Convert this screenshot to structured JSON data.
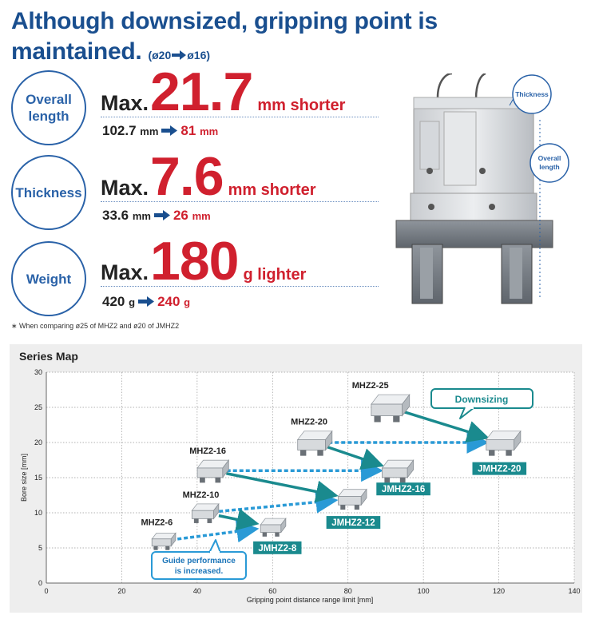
{
  "headline": {
    "line1": "Although downsized, gripping point is",
    "line2": "maintained.",
    "sub_from": "ø20",
    "sub_to": "ø16"
  },
  "metrics": [
    {
      "label_line1": "Overall",
      "label_line2": "length",
      "prefix": "Max.",
      "value": "21.7",
      "unit": "mm shorter",
      "from_value": "102.7",
      "from_unit": "mm",
      "to_value": "81",
      "to_unit": "mm"
    },
    {
      "label_line1": "Thickness",
      "label_line2": "",
      "prefix": "Max.",
      "value": "7.6",
      "unit": "mm shorter",
      "from_value": "33.6",
      "from_unit": "mm",
      "to_value": "26",
      "to_unit": "mm"
    },
    {
      "label_line1": "Weight",
      "label_line2": "",
      "prefix": "Max.",
      "value": "180",
      "unit": "g lighter",
      "from_value": "420",
      "from_unit": "g",
      "to_value": "240",
      "to_unit": "g"
    }
  ],
  "footnote": "When comparing ø25 of MHZ2 and ø20 of JMHZ2",
  "product_callouts": {
    "thickness": "Thickness",
    "overall_length_line1": "Overall",
    "overall_length_line2": "length"
  },
  "colors": {
    "brand_blue": "#1a4f8f",
    "highlight_red": "#d0202e",
    "teal": "#1a8a8e",
    "arrow_blue": "#2a9ad6",
    "panel_gray": "#eeeeee"
  },
  "chart_data": {
    "type": "scatter",
    "title": "Series Map",
    "xlabel": "Gripping point distance range limit [mm]",
    "ylabel": "Bore size [mm]",
    "xlim": [
      0,
      140
    ],
    "ylim": [
      0,
      30
    ],
    "x_ticks": [
      0,
      20,
      40,
      60,
      80,
      100,
      120,
      140
    ],
    "y_ticks": [
      0,
      5,
      10,
      15,
      20,
      25,
      30
    ],
    "grid": true,
    "series": [
      {
        "name": "MHZ2",
        "points": [
          {
            "label": "MHZ2-6",
            "x": 31,
            "y": 6
          },
          {
            "label": "MHZ2-10",
            "x": 42,
            "y": 10
          },
          {
            "label": "MHZ2-16",
            "x": 44,
            "y": 16
          },
          {
            "label": "MHZ2-20",
            "x": 71,
            "y": 20
          },
          {
            "label": "MHZ2-25",
            "x": 91,
            "y": 25
          }
        ]
      },
      {
        "name": "JMHZ2",
        "points": [
          {
            "label": "JMHZ2-8",
            "x": 60,
            "y": 8
          },
          {
            "label": "JMHZ2-12",
            "x": 81,
            "y": 12
          },
          {
            "label": "JMHZ2-16",
            "x": 93,
            "y": 16
          },
          {
            "label": "JMHZ2-20",
            "x": 121,
            "y": 20
          }
        ]
      }
    ],
    "annotations": {
      "downsizing": "Downsizing",
      "guide_line1": "Guide performance",
      "guide_line2": "is increased."
    }
  }
}
